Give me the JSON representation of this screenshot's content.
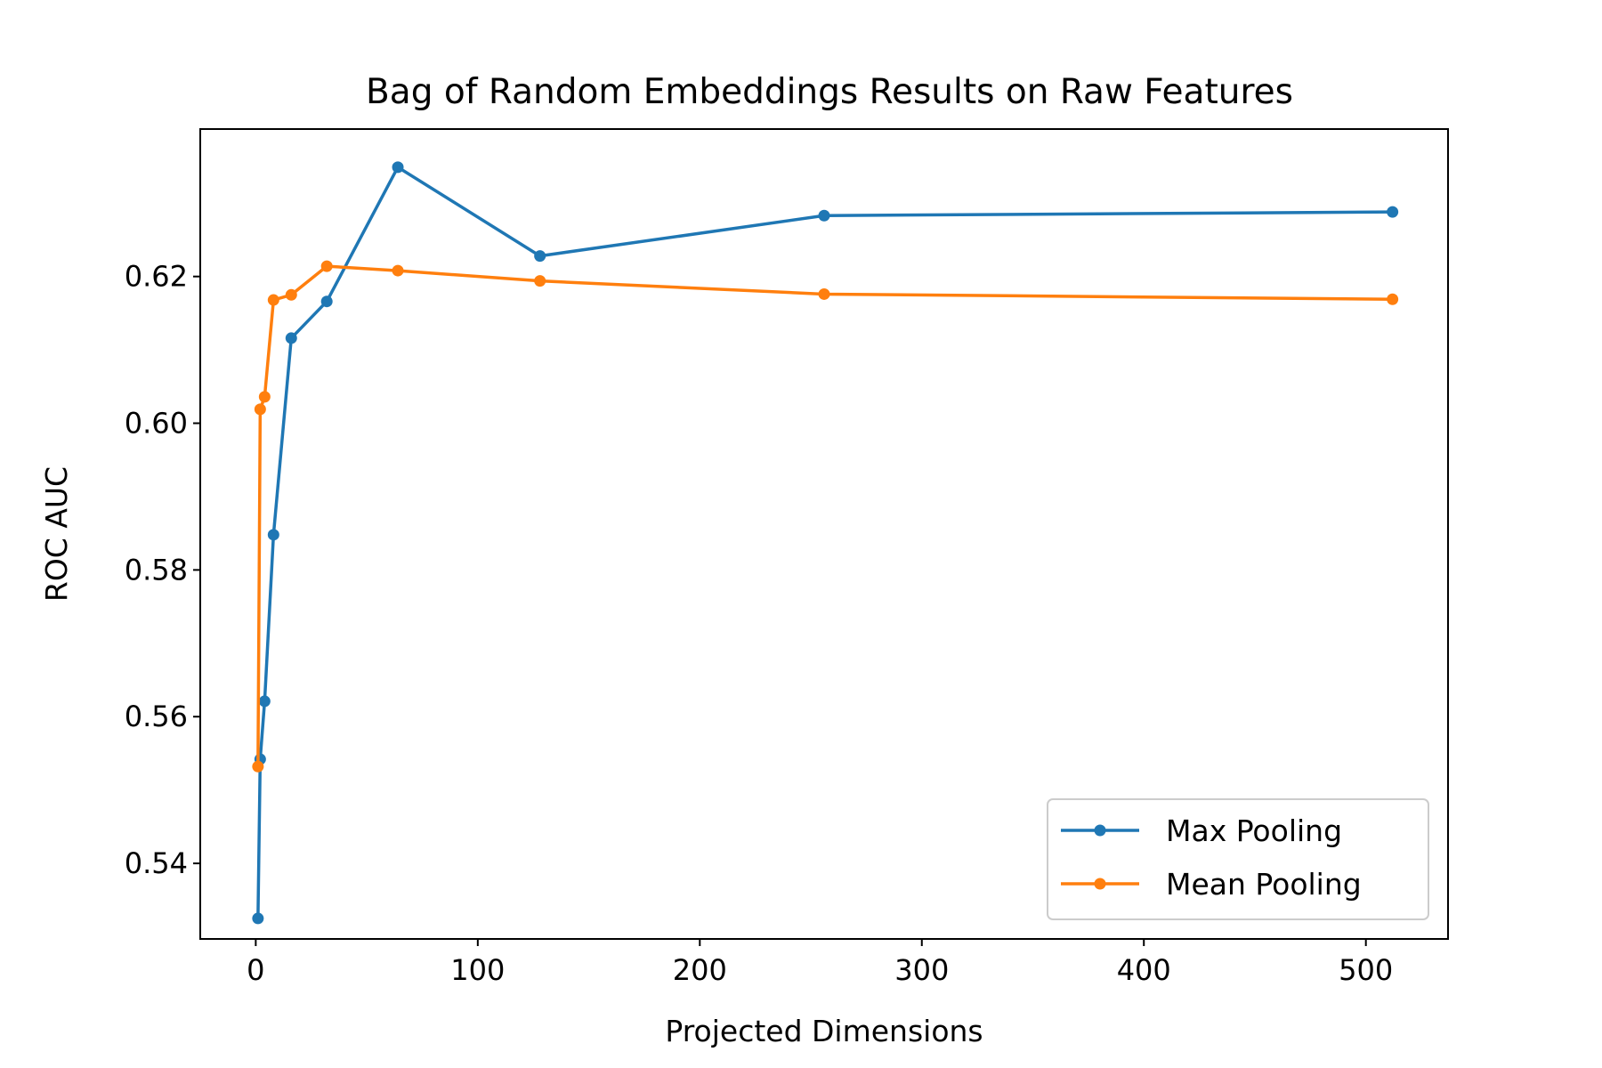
{
  "chart_data": {
    "type": "line",
    "title": "Bag of Random Embeddings Results on Raw Features",
    "xlabel": "Projected Dimensions",
    "ylabel": "ROC AUC",
    "xlim": [
      -25,
      537
    ],
    "ylim": [
      0.5297,
      0.6401
    ],
    "xticks": [
      0,
      100,
      200,
      300,
      400,
      500
    ],
    "xtick_labels": [
      "0",
      "100",
      "200",
      "300",
      "400",
      "500"
    ],
    "yticks": [
      0.54,
      0.56,
      0.58,
      0.6,
      0.62
    ],
    "ytick_labels": [
      "0.54",
      "0.56",
      "0.58",
      "0.60",
      "0.62"
    ],
    "grid": false,
    "legend_position": "bottom-right",
    "series": [
      {
        "name": "Max Pooling",
        "color": "#1f77b4",
        "marker": "circle",
        "x": [
          1,
          2,
          4,
          8,
          16,
          32,
          64,
          128,
          256,
          512
        ],
        "y": [
          0.5325,
          0.5542,
          0.5621,
          0.5848,
          0.6116,
          0.6166,
          0.6349,
          0.6228,
          0.6283,
          0.6288
        ]
      },
      {
        "name": "Mean Pooling",
        "color": "#ff7f0e",
        "marker": "circle",
        "x": [
          1,
          2,
          4,
          8,
          16,
          32,
          64,
          128,
          256,
          512
        ],
        "y": [
          0.5532,
          0.6019,
          0.6036,
          0.6168,
          0.6175,
          0.6214,
          0.6208,
          0.6194,
          0.6176,
          0.6169
        ]
      }
    ]
  }
}
